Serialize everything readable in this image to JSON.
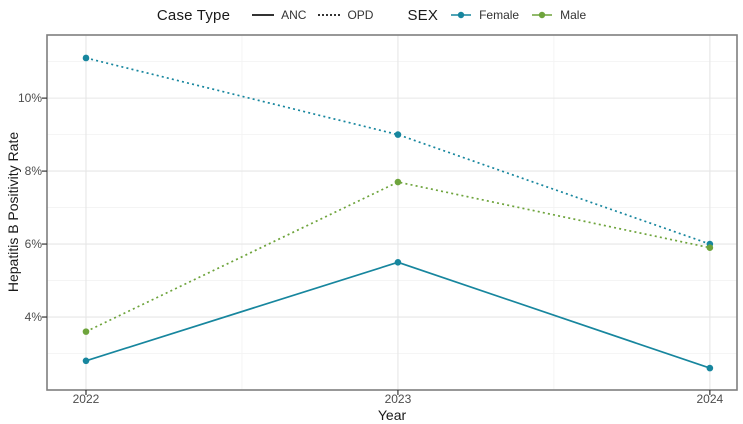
{
  "legend": {
    "case_type_title": "Case Type",
    "anc_label": "ANC",
    "opd_label": "OPD",
    "sex_title": "SEX",
    "female_label": "Female",
    "male_label": "Male"
  },
  "axes": {
    "x_title": "Year",
    "y_title": "Hepatitis B Positivity Rate",
    "x_tick_labels": [
      "2022",
      "2023",
      "2024"
    ],
    "y_tick_labels": [
      "4%",
      "6%",
      "8%",
      "10%"
    ]
  },
  "chart_data": {
    "type": "line",
    "x": [
      2022,
      2023,
      2024
    ],
    "series": [
      {
        "name": "Female ANC",
        "sex": "Female",
        "case_type": "ANC",
        "linetype": "solid",
        "color": "#17869E",
        "values": [
          2.8,
          5.5,
          2.6
        ]
      },
      {
        "name": "Female OPD",
        "sex": "Female",
        "case_type": "OPD",
        "linetype": "dotted",
        "color": "#17869E",
        "values": [
          11.1,
          9.0,
          6.0
        ]
      },
      {
        "name": "Male OPD",
        "sex": "Male",
        "case_type": "OPD",
        "linetype": "dotted",
        "color": "#6EA43C",
        "values": [
          3.6,
          7.7,
          5.9
        ]
      }
    ],
    "title": "",
    "xlabel": "Year",
    "ylabel": "Hepatitis B Positivity Rate",
    "ylim": [
      2.0,
      11.73
    ],
    "xlim": [
      2021.875,
      2024.087
    ],
    "y_major_ticks": [
      4,
      6,
      8,
      10
    ],
    "y_minor_ticks": [
      3,
      5,
      7,
      9,
      11
    ],
    "x_minor_ticks": [
      2022.5,
      2023.5
    ],
    "grid": true,
    "legend_position": "top",
    "y_unit": "%"
  },
  "colors": {
    "female": "#17869E",
    "male": "#6EA43C",
    "grid_major": "#e6e6e6",
    "grid_minor": "#f2f2f2",
    "panel_border": "#7f7f7f",
    "tick": "#333333",
    "panel_bg": "#ffffff"
  }
}
